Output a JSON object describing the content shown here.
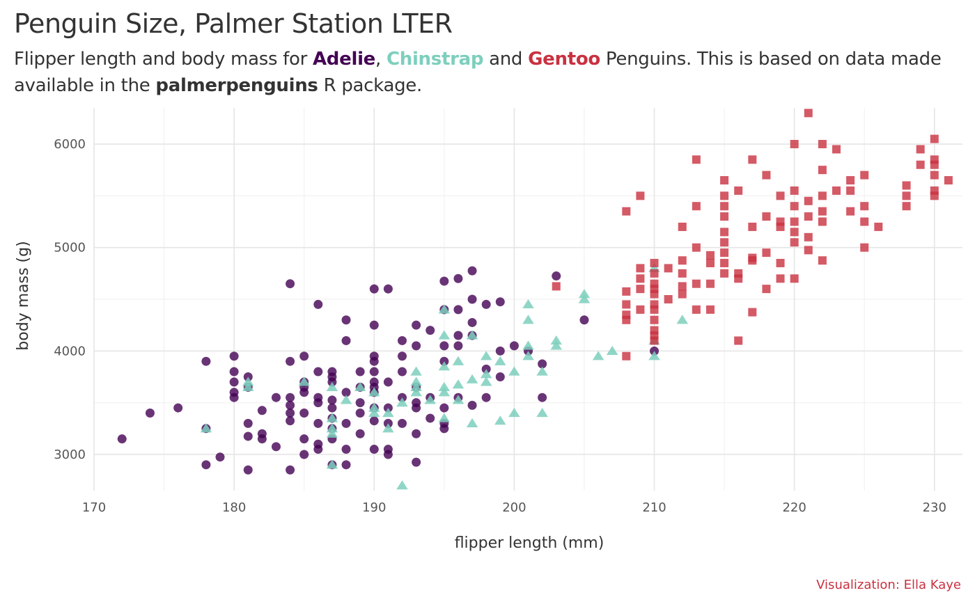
{
  "title": "Penguin Size, Palmer Station LTER",
  "subtitle": {
    "part1": "Flipper length and body mass for ",
    "adelie": "Adelie",
    "sep1": ", ",
    "chinstrap": "Chinstrap",
    "sep2": " and ",
    "gentoo": "Gentoo",
    "part2": " Penguins. This is based on data made available in the ",
    "package": "palmerpenguins",
    "part3": " R package."
  },
  "caption": "Visualization: Ella Kaye",
  "colors": {
    "adelie": "#440154",
    "chinstrap": "#7dcfbd",
    "gentoo": "#c93140",
    "grid_major": "#e5e5e5",
    "grid_minor": "#f2f2f2"
  },
  "chart_data": {
    "type": "scatter",
    "title": "Penguin Size, Palmer Station LTER",
    "xlabel": "flipper length (mm)",
    "ylabel": "body mass (g)",
    "xlim": [
      170,
      232
    ],
    "ylim": [
      2650,
      6350
    ],
    "x_ticks": [
      170,
      180,
      190,
      200,
      210,
      220,
      230
    ],
    "y_ticks": [
      3000,
      4000,
      5000,
      6000
    ],
    "grid": true,
    "legend": "none",
    "series": [
      {
        "name": "Adelie",
        "marker": "circle",
        "points": [
          [
            172,
            3150
          ],
          [
            174,
            3400
          ],
          [
            176,
            3450
          ],
          [
            178,
            3900
          ],
          [
            178,
            2900
          ],
          [
            178,
            3250
          ],
          [
            179,
            2975
          ],
          [
            180,
            3950
          ],
          [
            180,
            3800
          ],
          [
            180,
            3700
          ],
          [
            180,
            3600
          ],
          [
            180,
            3550
          ],
          [
            181,
            3750
          ],
          [
            181,
            3650
          ],
          [
            181,
            3300
          ],
          [
            181,
            3175
          ],
          [
            181,
            2850
          ],
          [
            182,
            3425
          ],
          [
            182,
            3200
          ],
          [
            182,
            3150
          ],
          [
            183,
            3550
          ],
          [
            183,
            3075
          ],
          [
            184,
            4650
          ],
          [
            184,
            3900
          ],
          [
            184,
            3550
          ],
          [
            184,
            3475
          ],
          [
            184,
            3400
          ],
          [
            184,
            3325
          ],
          [
            184,
            2850
          ],
          [
            185,
            3950
          ],
          [
            185,
            3700
          ],
          [
            185,
            3650
          ],
          [
            185,
            3600
          ],
          [
            185,
            3400
          ],
          [
            185,
            3150
          ],
          [
            185,
            3000
          ],
          [
            186,
            4450
          ],
          [
            186,
            3800
          ],
          [
            186,
            3550
          ],
          [
            186,
            3500
          ],
          [
            186,
            3300
          ],
          [
            186,
            3100
          ],
          [
            186,
            3050
          ],
          [
            187,
            3800
          ],
          [
            187,
            3750
          ],
          [
            187,
            3700
          ],
          [
            187,
            3525
          ],
          [
            187,
            3450
          ],
          [
            187,
            3350
          ],
          [
            187,
            3250
          ],
          [
            187,
            3150
          ],
          [
            187,
            2900
          ],
          [
            188,
            4300
          ],
          [
            188,
            4100
          ],
          [
            188,
            3600
          ],
          [
            188,
            3300
          ],
          [
            188,
            3050
          ],
          [
            188,
            2900
          ],
          [
            189,
            3800
          ],
          [
            189,
            3650
          ],
          [
            189,
            3500
          ],
          [
            189,
            3400
          ],
          [
            189,
            3200
          ],
          [
            190,
            4600
          ],
          [
            190,
            4250
          ],
          [
            190,
            3950
          ],
          [
            190,
            3900
          ],
          [
            190,
            3800
          ],
          [
            190,
            3700
          ],
          [
            190,
            3650
          ],
          [
            190,
            3600
          ],
          [
            190,
            3450
          ],
          [
            190,
            3325
          ],
          [
            190,
            3050
          ],
          [
            191,
            4600
          ],
          [
            191,
            3700
          ],
          [
            191,
            3450
          ],
          [
            191,
            3300
          ],
          [
            191,
            3050
          ],
          [
            191,
            3000
          ],
          [
            192,
            4100
          ],
          [
            192,
            3950
          ],
          [
            192,
            3800
          ],
          [
            192,
            3550
          ],
          [
            192,
            3300
          ],
          [
            193,
            4250
          ],
          [
            193,
            4050
          ],
          [
            193,
            3650
          ],
          [
            193,
            3500
          ],
          [
            193,
            3450
          ],
          [
            193,
            3200
          ],
          [
            193,
            2925
          ],
          [
            194,
            4200
          ],
          [
            194,
            3550
          ],
          [
            194,
            3350
          ],
          [
            195,
            4675
          ],
          [
            195,
            4400
          ],
          [
            195,
            4050
          ],
          [
            195,
            3900
          ],
          [
            195,
            3450
          ],
          [
            195,
            3300
          ],
          [
            195,
            3250
          ],
          [
            196,
            4700
          ],
          [
            196,
            4400
          ],
          [
            196,
            4150
          ],
          [
            196,
            4050
          ],
          [
            196,
            3550
          ],
          [
            197,
            4775
          ],
          [
            197,
            4500
          ],
          [
            197,
            4275
          ],
          [
            197,
            4150
          ],
          [
            197,
            3475
          ],
          [
            198,
            4450
          ],
          [
            198,
            3825
          ],
          [
            198,
            3550
          ],
          [
            199,
            4475
          ],
          [
            199,
            4000
          ],
          [
            199,
            3750
          ],
          [
            200,
            4050
          ],
          [
            201,
            4000
          ],
          [
            202,
            3875
          ],
          [
            202,
            3550
          ],
          [
            203,
            4725
          ],
          [
            205,
            4300
          ],
          [
            210,
            4000
          ]
        ]
      },
      {
        "name": "Chinstrap",
        "marker": "triangle",
        "points": [
          [
            178,
            3250
          ],
          [
            181,
            3700
          ],
          [
            181,
            3650
          ],
          [
            185,
            3700
          ],
          [
            187,
            3650
          ],
          [
            187,
            3350
          ],
          [
            187,
            3250
          ],
          [
            187,
            3200
          ],
          [
            187,
            2900
          ],
          [
            188,
            3525
          ],
          [
            189,
            3650
          ],
          [
            190,
            3600
          ],
          [
            190,
            3450
          ],
          [
            190,
            3400
          ],
          [
            191,
            3400
          ],
          [
            191,
            3250
          ],
          [
            192,
            3500
          ],
          [
            192,
            2700
          ],
          [
            193,
            3800
          ],
          [
            193,
            3700
          ],
          [
            193,
            3650
          ],
          [
            193,
            3600
          ],
          [
            194,
            3525
          ],
          [
            195,
            4400
          ],
          [
            195,
            4150
          ],
          [
            195,
            3850
          ],
          [
            195,
            3650
          ],
          [
            195,
            3600
          ],
          [
            195,
            3350
          ],
          [
            196,
            3900
          ],
          [
            196,
            3675
          ],
          [
            196,
            3525
          ],
          [
            197,
            4150
          ],
          [
            197,
            3725
          ],
          [
            197,
            3300
          ],
          [
            198,
            3950
          ],
          [
            198,
            3775
          ],
          [
            198,
            3700
          ],
          [
            199,
            3900
          ],
          [
            199,
            3325
          ],
          [
            200,
            3800
          ],
          [
            200,
            3400
          ],
          [
            201,
            4450
          ],
          [
            201,
            4300
          ],
          [
            201,
            4050
          ],
          [
            201,
            3950
          ],
          [
            202,
            3800
          ],
          [
            202,
            3400
          ],
          [
            203,
            4100
          ],
          [
            203,
            4050
          ],
          [
            205,
            4550
          ],
          [
            205,
            4500
          ],
          [
            206,
            3950
          ],
          [
            207,
            4000
          ],
          [
            210,
            4800
          ],
          [
            210,
            4100
          ],
          [
            210,
            3950
          ],
          [
            212,
            4300
          ]
        ]
      },
      {
        "name": "Gentoo",
        "marker": "square",
        "points": [
          [
            203,
            4625
          ],
          [
            208,
            5350
          ],
          [
            208,
            4575
          ],
          [
            208,
            4450
          ],
          [
            208,
            4350
          ],
          [
            208,
            4300
          ],
          [
            208,
            3950
          ],
          [
            209,
            5500
          ],
          [
            209,
            4800
          ],
          [
            209,
            4700
          ],
          [
            209,
            4600
          ],
          [
            209,
            4400
          ],
          [
            210,
            4850
          ],
          [
            210,
            4750
          ],
          [
            210,
            4650
          ],
          [
            210,
            4600
          ],
          [
            210,
            4550
          ],
          [
            210,
            4450
          ],
          [
            210,
            4400
          ],
          [
            210,
            4300
          ],
          [
            210,
            4200
          ],
          [
            210,
            4150
          ],
          [
            210,
            4100
          ],
          [
            211,
            4800
          ],
          [
            211,
            4500
          ],
          [
            212,
            5200
          ],
          [
            212,
            4875
          ],
          [
            212,
            4750
          ],
          [
            212,
            4625
          ],
          [
            212,
            4550
          ],
          [
            213,
            5850
          ],
          [
            213,
            5400
          ],
          [
            213,
            5000
          ],
          [
            213,
            4650
          ],
          [
            213,
            4400
          ],
          [
            214,
            4925
          ],
          [
            214,
            4850
          ],
          [
            214,
            4650
          ],
          [
            214,
            4400
          ],
          [
            215,
            5650
          ],
          [
            215,
            5500
          ],
          [
            215,
            5400
          ],
          [
            215,
            5300
          ],
          [
            215,
            5150
          ],
          [
            215,
            5050
          ],
          [
            215,
            4950
          ],
          [
            215,
            4850
          ],
          [
            215,
            4750
          ],
          [
            216,
            5550
          ],
          [
            216,
            4750
          ],
          [
            216,
            4700
          ],
          [
            216,
            4100
          ],
          [
            217,
            5850
          ],
          [
            217,
            5200
          ],
          [
            217,
            4900
          ],
          [
            217,
            4875
          ],
          [
            217,
            4375
          ],
          [
            218,
            5700
          ],
          [
            218,
            5300
          ],
          [
            218,
            4950
          ],
          [
            218,
            4600
          ],
          [
            219,
            5500
          ],
          [
            219,
            5250
          ],
          [
            219,
            5200
          ],
          [
            219,
            4850
          ],
          [
            219,
            4700
          ],
          [
            220,
            6000
          ],
          [
            220,
            5550
          ],
          [
            220,
            5400
          ],
          [
            220,
            5250
          ],
          [
            220,
            5150
          ],
          [
            220,
            5050
          ],
          [
            220,
            4700
          ],
          [
            221,
            6300
          ],
          [
            221,
            5450
          ],
          [
            221,
            5300
          ],
          [
            221,
            5100
          ],
          [
            221,
            4975
          ],
          [
            222,
            6000
          ],
          [
            222,
            5750
          ],
          [
            222,
            5500
          ],
          [
            222,
            5350
          ],
          [
            222,
            5250
          ],
          [
            222,
            4875
          ],
          [
            223,
            5950
          ],
          [
            223,
            5550
          ],
          [
            224,
            5650
          ],
          [
            224,
            5550
          ],
          [
            224,
            5350
          ],
          [
            225,
            5700
          ],
          [
            225,
            5400
          ],
          [
            225,
            5250
          ],
          [
            225,
            5000
          ],
          [
            226,
            5200
          ],
          [
            228,
            5600
          ],
          [
            228,
            5500
          ],
          [
            228,
            5400
          ],
          [
            229,
            5950
          ],
          [
            229,
            5800
          ],
          [
            230,
            6050
          ],
          [
            230,
            5850
          ],
          [
            230,
            5800
          ],
          [
            230,
            5700
          ],
          [
            230,
            5550
          ],
          [
            230,
            5500
          ],
          [
            231,
            5650
          ]
        ]
      }
    ]
  }
}
